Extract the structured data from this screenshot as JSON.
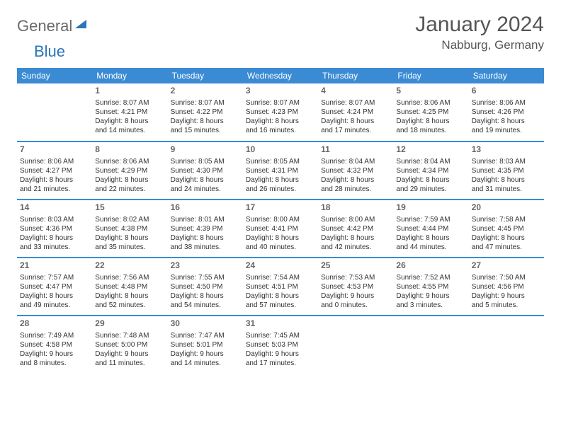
{
  "logo": {
    "general": "General",
    "blue": "Blue"
  },
  "header": {
    "title": "January 2024",
    "location": "Nabburg, Germany"
  },
  "colors": {
    "header_bg": "#3b8bd4",
    "header_text": "#ffffff",
    "rule": "#3b8bd4",
    "body_text": "#333333",
    "muted_text": "#666666",
    "logo_gray": "#6a6a6a",
    "logo_blue": "#2a75bb",
    "background": "#ffffff"
  },
  "typography": {
    "title_fontsize": 30,
    "location_fontsize": 17,
    "dayheader_fontsize": 12,
    "daynum_fontsize": 12,
    "cell_fontsize": 10
  },
  "day_headers": [
    "Sunday",
    "Monday",
    "Tuesday",
    "Wednesday",
    "Thursday",
    "Friday",
    "Saturday"
  ],
  "weeks": [
    [
      {
        "num": "",
        "sunrise": "",
        "sunset": "",
        "daylight1": "",
        "daylight2": ""
      },
      {
        "num": "1",
        "sunrise": "Sunrise: 8:07 AM",
        "sunset": "Sunset: 4:21 PM",
        "daylight1": "Daylight: 8 hours",
        "daylight2": "and 14 minutes."
      },
      {
        "num": "2",
        "sunrise": "Sunrise: 8:07 AM",
        "sunset": "Sunset: 4:22 PM",
        "daylight1": "Daylight: 8 hours",
        "daylight2": "and 15 minutes."
      },
      {
        "num": "3",
        "sunrise": "Sunrise: 8:07 AM",
        "sunset": "Sunset: 4:23 PM",
        "daylight1": "Daylight: 8 hours",
        "daylight2": "and 16 minutes."
      },
      {
        "num": "4",
        "sunrise": "Sunrise: 8:07 AM",
        "sunset": "Sunset: 4:24 PM",
        "daylight1": "Daylight: 8 hours",
        "daylight2": "and 17 minutes."
      },
      {
        "num": "5",
        "sunrise": "Sunrise: 8:06 AM",
        "sunset": "Sunset: 4:25 PM",
        "daylight1": "Daylight: 8 hours",
        "daylight2": "and 18 minutes."
      },
      {
        "num": "6",
        "sunrise": "Sunrise: 8:06 AM",
        "sunset": "Sunset: 4:26 PM",
        "daylight1": "Daylight: 8 hours",
        "daylight2": "and 19 minutes."
      }
    ],
    [
      {
        "num": "7",
        "sunrise": "Sunrise: 8:06 AM",
        "sunset": "Sunset: 4:27 PM",
        "daylight1": "Daylight: 8 hours",
        "daylight2": "and 21 minutes."
      },
      {
        "num": "8",
        "sunrise": "Sunrise: 8:06 AM",
        "sunset": "Sunset: 4:29 PM",
        "daylight1": "Daylight: 8 hours",
        "daylight2": "and 22 minutes."
      },
      {
        "num": "9",
        "sunrise": "Sunrise: 8:05 AM",
        "sunset": "Sunset: 4:30 PM",
        "daylight1": "Daylight: 8 hours",
        "daylight2": "and 24 minutes."
      },
      {
        "num": "10",
        "sunrise": "Sunrise: 8:05 AM",
        "sunset": "Sunset: 4:31 PM",
        "daylight1": "Daylight: 8 hours",
        "daylight2": "and 26 minutes."
      },
      {
        "num": "11",
        "sunrise": "Sunrise: 8:04 AM",
        "sunset": "Sunset: 4:32 PM",
        "daylight1": "Daylight: 8 hours",
        "daylight2": "and 28 minutes."
      },
      {
        "num": "12",
        "sunrise": "Sunrise: 8:04 AM",
        "sunset": "Sunset: 4:34 PM",
        "daylight1": "Daylight: 8 hours",
        "daylight2": "and 29 minutes."
      },
      {
        "num": "13",
        "sunrise": "Sunrise: 8:03 AM",
        "sunset": "Sunset: 4:35 PM",
        "daylight1": "Daylight: 8 hours",
        "daylight2": "and 31 minutes."
      }
    ],
    [
      {
        "num": "14",
        "sunrise": "Sunrise: 8:03 AM",
        "sunset": "Sunset: 4:36 PM",
        "daylight1": "Daylight: 8 hours",
        "daylight2": "and 33 minutes."
      },
      {
        "num": "15",
        "sunrise": "Sunrise: 8:02 AM",
        "sunset": "Sunset: 4:38 PM",
        "daylight1": "Daylight: 8 hours",
        "daylight2": "and 35 minutes."
      },
      {
        "num": "16",
        "sunrise": "Sunrise: 8:01 AM",
        "sunset": "Sunset: 4:39 PM",
        "daylight1": "Daylight: 8 hours",
        "daylight2": "and 38 minutes."
      },
      {
        "num": "17",
        "sunrise": "Sunrise: 8:00 AM",
        "sunset": "Sunset: 4:41 PM",
        "daylight1": "Daylight: 8 hours",
        "daylight2": "and 40 minutes."
      },
      {
        "num": "18",
        "sunrise": "Sunrise: 8:00 AM",
        "sunset": "Sunset: 4:42 PM",
        "daylight1": "Daylight: 8 hours",
        "daylight2": "and 42 minutes."
      },
      {
        "num": "19",
        "sunrise": "Sunrise: 7:59 AM",
        "sunset": "Sunset: 4:44 PM",
        "daylight1": "Daylight: 8 hours",
        "daylight2": "and 44 minutes."
      },
      {
        "num": "20",
        "sunrise": "Sunrise: 7:58 AM",
        "sunset": "Sunset: 4:45 PM",
        "daylight1": "Daylight: 8 hours",
        "daylight2": "and 47 minutes."
      }
    ],
    [
      {
        "num": "21",
        "sunrise": "Sunrise: 7:57 AM",
        "sunset": "Sunset: 4:47 PM",
        "daylight1": "Daylight: 8 hours",
        "daylight2": "and 49 minutes."
      },
      {
        "num": "22",
        "sunrise": "Sunrise: 7:56 AM",
        "sunset": "Sunset: 4:48 PM",
        "daylight1": "Daylight: 8 hours",
        "daylight2": "and 52 minutes."
      },
      {
        "num": "23",
        "sunrise": "Sunrise: 7:55 AM",
        "sunset": "Sunset: 4:50 PM",
        "daylight1": "Daylight: 8 hours",
        "daylight2": "and 54 minutes."
      },
      {
        "num": "24",
        "sunrise": "Sunrise: 7:54 AM",
        "sunset": "Sunset: 4:51 PM",
        "daylight1": "Daylight: 8 hours",
        "daylight2": "and 57 minutes."
      },
      {
        "num": "25",
        "sunrise": "Sunrise: 7:53 AM",
        "sunset": "Sunset: 4:53 PM",
        "daylight1": "Daylight: 9 hours",
        "daylight2": "and 0 minutes."
      },
      {
        "num": "26",
        "sunrise": "Sunrise: 7:52 AM",
        "sunset": "Sunset: 4:55 PM",
        "daylight1": "Daylight: 9 hours",
        "daylight2": "and 3 minutes."
      },
      {
        "num": "27",
        "sunrise": "Sunrise: 7:50 AM",
        "sunset": "Sunset: 4:56 PM",
        "daylight1": "Daylight: 9 hours",
        "daylight2": "and 5 minutes."
      }
    ],
    [
      {
        "num": "28",
        "sunrise": "Sunrise: 7:49 AM",
        "sunset": "Sunset: 4:58 PM",
        "daylight1": "Daylight: 9 hours",
        "daylight2": "and 8 minutes."
      },
      {
        "num": "29",
        "sunrise": "Sunrise: 7:48 AM",
        "sunset": "Sunset: 5:00 PM",
        "daylight1": "Daylight: 9 hours",
        "daylight2": "and 11 minutes."
      },
      {
        "num": "30",
        "sunrise": "Sunrise: 7:47 AM",
        "sunset": "Sunset: 5:01 PM",
        "daylight1": "Daylight: 9 hours",
        "daylight2": "and 14 minutes."
      },
      {
        "num": "31",
        "sunrise": "Sunrise: 7:45 AM",
        "sunset": "Sunset: 5:03 PM",
        "daylight1": "Daylight: 9 hours",
        "daylight2": "and 17 minutes."
      },
      {
        "num": "",
        "sunrise": "",
        "sunset": "",
        "daylight1": "",
        "daylight2": ""
      },
      {
        "num": "",
        "sunrise": "",
        "sunset": "",
        "daylight1": "",
        "daylight2": ""
      },
      {
        "num": "",
        "sunrise": "",
        "sunset": "",
        "daylight1": "",
        "daylight2": ""
      }
    ]
  ]
}
